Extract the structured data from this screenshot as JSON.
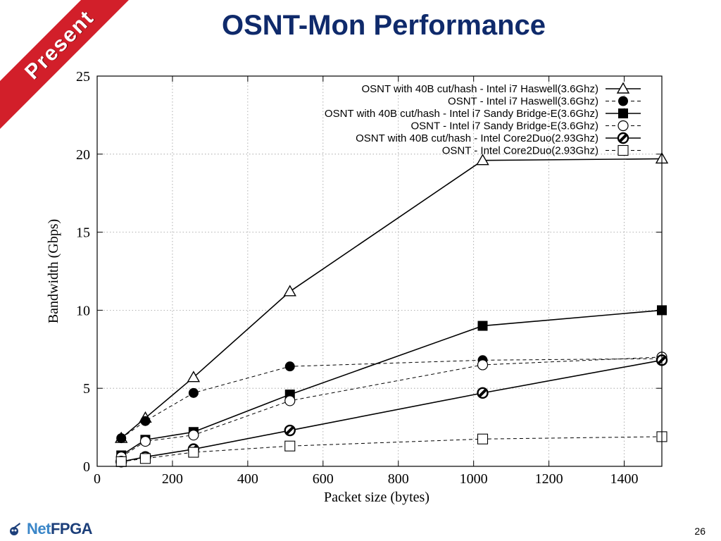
{
  "slide": {
    "title": "OSNT-Mon Performance",
    "ribbon_text": "Present",
    "page_number": "26",
    "logo_text_part1": "Net",
    "logo_text_part2": "FPGA"
  },
  "colors": {
    "title": "#0f2a6b",
    "ribbon": "#d21f2a",
    "logo": "#1c3f7a"
  },
  "chart_data": {
    "type": "line",
    "title": "",
    "xlabel": "Packet size (bytes)",
    "ylabel": "Bandwidth (Gbps)",
    "xlim": [
      0,
      1500
    ],
    "ylim": [
      0,
      25
    ],
    "xticks": [
      0,
      200,
      400,
      600,
      800,
      1000,
      1200,
      1400
    ],
    "yticks": [
      0,
      5,
      10,
      15,
      20,
      25
    ],
    "grid": true,
    "legend_position": "top-right",
    "x": [
      64,
      128,
      256,
      512,
      1024,
      1500
    ],
    "series": [
      {
        "name": "OSNT with 40B cut/hash - Intel i7 Haswell(3.6Ghz)",
        "marker": "triangle-open",
        "dashed": false,
        "values": [
          1.8,
          3.1,
          5.7,
          11.2,
          19.6,
          19.7
        ]
      },
      {
        "name": "OSNT - Intel i7 Haswell(3.6Ghz)",
        "marker": "circle-filled",
        "dashed": true,
        "values": [
          1.8,
          2.9,
          4.7,
          6.4,
          6.8,
          6.9
        ]
      },
      {
        "name": "OSNT with 40B cut/hash - Intel i7 Sandy Bridge-E(3.6Ghz)",
        "marker": "square-filled",
        "dashed": false,
        "values": [
          0.7,
          1.7,
          2.2,
          4.6,
          9.0,
          10.0
        ]
      },
      {
        "name": "OSNT - Intel i7 Sandy Bridge-E(3.6Ghz)",
        "marker": "circle-open",
        "dashed": true,
        "values": [
          0.6,
          1.6,
          2.0,
          4.2,
          6.5,
          7.0
        ]
      },
      {
        "name": "OSNT with 40B cut/hash - Intel Core2Duo(2.93Ghz)",
        "marker": "circle-half",
        "dashed": false,
        "values": [
          0.3,
          0.6,
          1.1,
          2.3,
          4.7,
          6.8
        ]
      },
      {
        "name": "OSNT - Intel Core2Duo(2.93Ghz)",
        "marker": "square-open",
        "dashed": true,
        "values": [
          0.3,
          0.5,
          0.9,
          1.3,
          1.75,
          1.9
        ]
      }
    ]
  }
}
